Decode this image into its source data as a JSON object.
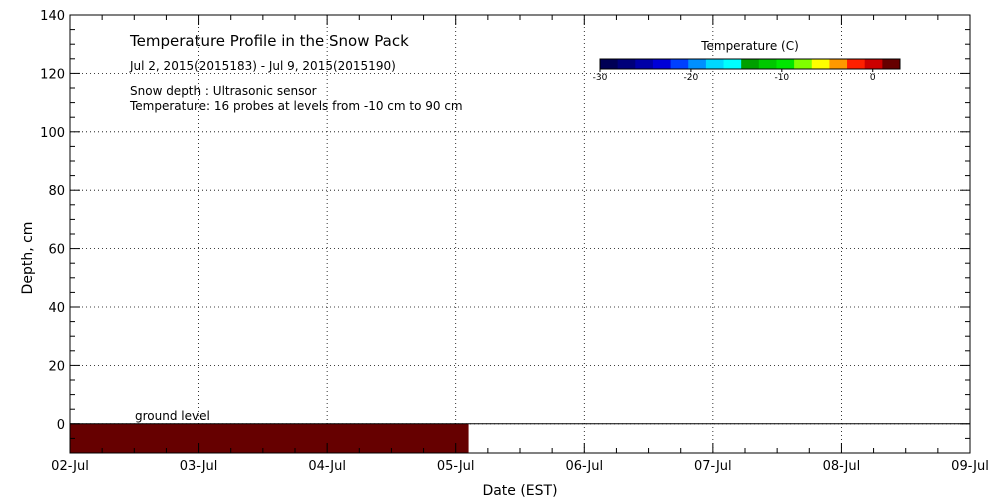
{
  "chart_data": {
    "type": "heatmap",
    "title": "Temperature Profile in the Snow Pack",
    "subtitle": "Jul  2, 2015(2015183) - Jul  9, 2015(2015190)",
    "notes": [
      "Snow depth : Ultrasonic sensor",
      "Temperature: 16 probes at levels from -10 cm to 90 cm"
    ],
    "xlabel": "Date (EST)",
    "ylabel": "Depth, cm",
    "x_ticks": [
      "02-Jul",
      "03-Jul",
      "04-Jul",
      "05-Jul",
      "06-Jul",
      "07-Jul",
      "08-Jul",
      "09-Jul"
    ],
    "xlim": [
      0,
      7
    ],
    "y_ticks": [
      0,
      20,
      40,
      60,
      80,
      100,
      120,
      140
    ],
    "ylim": [
      -10,
      140
    ],
    "grid": true,
    "ground_level": {
      "label": "ground level",
      "depth": 0
    },
    "filled_region": {
      "x_start": 0,
      "x_end": 3.1,
      "depth_top": 0,
      "depth_bottom": -10,
      "color": "#660000"
    },
    "colorbar": {
      "title": "Temperature (C)",
      "range": [
        -30,
        3
      ],
      "tick_values": [
        -30,
        -20,
        -10,
        0
      ],
      "tick_labels": [
        "-30",
        "-20",
        "-10",
        "0"
      ],
      "colors": [
        "#000055",
        "#00007a",
        "#0000a8",
        "#0000d8",
        "#0040ff",
        "#0090ff",
        "#00d8ff",
        "#00ffff",
        "#00a000",
        "#00c800",
        "#00e600",
        "#80ff00",
        "#ffff00",
        "#ff9900",
        "#ff2000",
        "#cc0000",
        "#660000"
      ]
    }
  }
}
